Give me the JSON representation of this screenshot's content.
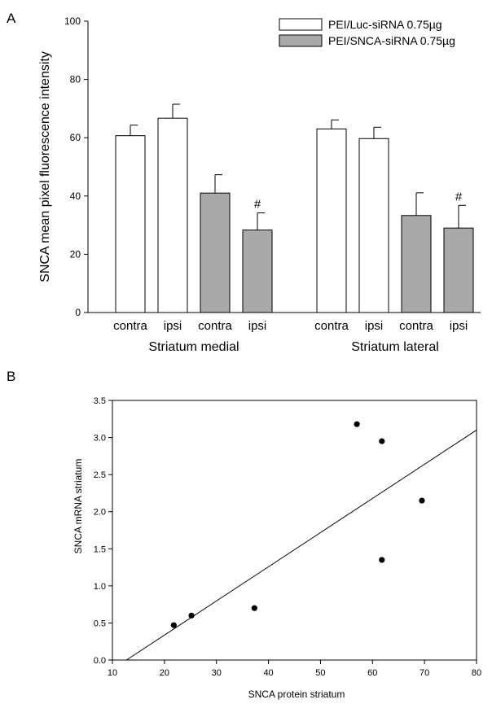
{
  "chart_data": [
    {
      "panel": "A",
      "type": "bar",
      "ylabel": "SNCA mean pixel fluorescence intensity",
      "ylim": [
        0,
        100
      ],
      "yticks": [
        0,
        20,
        40,
        60,
        80,
        100
      ],
      "categories": [
        "contra",
        "ipsi",
        "contra",
        "ipsi",
        "contra",
        "ipsi",
        "contra",
        "ipsi"
      ],
      "groups": [
        {
          "label": "Striatum medial",
          "bars": [
            0,
            1,
            2,
            3
          ]
        },
        {
          "label": "Striatum lateral",
          "bars": [
            4,
            5,
            6,
            7
          ]
        }
      ],
      "series": [
        {
          "name": "PEI/Luc-siRNA 0.75µg",
          "color": "#ffffff"
        },
        {
          "name": "PEI/SNCA-siRNA 0.75µg",
          "color": "#a9a9a9"
        }
      ],
      "bars": [
        {
          "category": "contra",
          "series": 0,
          "value": 60.7,
          "error": 3.6,
          "annotation": ""
        },
        {
          "category": "ipsi",
          "series": 0,
          "value": 66.7,
          "error": 4.8,
          "annotation": ""
        },
        {
          "category": "contra",
          "series": 1,
          "value": 41.0,
          "error": 6.3,
          "annotation": ""
        },
        {
          "category": "ipsi",
          "series": 1,
          "value": 28.3,
          "error": 5.9,
          "annotation": "#"
        },
        {
          "category": "contra",
          "series": 0,
          "value": 63.0,
          "error": 3.1,
          "annotation": ""
        },
        {
          "category": "ipsi",
          "series": 0,
          "value": 59.7,
          "error": 3.9,
          "annotation": ""
        },
        {
          "category": "contra",
          "series": 1,
          "value": 33.3,
          "error": 7.8,
          "annotation": ""
        },
        {
          "category": "ipsi",
          "series": 1,
          "value": 29.0,
          "error": 7.8,
          "annotation": "#"
        }
      ]
    },
    {
      "panel": "B",
      "type": "scatter",
      "xlabel": "SNCA protein striatum",
      "ylabel": "SNCA mRNA striatum",
      "xlim": [
        10,
        80
      ],
      "ylim": [
        0,
        3.5
      ],
      "xticks": [
        10,
        20,
        30,
        40,
        50,
        60,
        70,
        80
      ],
      "yticks": [
        "0.0",
        "0.5",
        "1.0",
        "1.5",
        "2.0",
        "2.5",
        "3.0",
        "3.5"
      ],
      "points": [
        {
          "x": 21.8,
          "y": 0.47
        },
        {
          "x": 25.2,
          "y": 0.6
        },
        {
          "x": 37.3,
          "y": 0.7
        },
        {
          "x": 57.0,
          "y": 3.18
        },
        {
          "x": 61.8,
          "y": 2.95
        },
        {
          "x": 61.8,
          "y": 1.35
        },
        {
          "x": 69.5,
          "y": 2.15
        }
      ],
      "fit_line": {
        "x1": 12.7,
        "y1": 0.0,
        "x2": 80.0,
        "y2": 3.1
      }
    }
  ]
}
